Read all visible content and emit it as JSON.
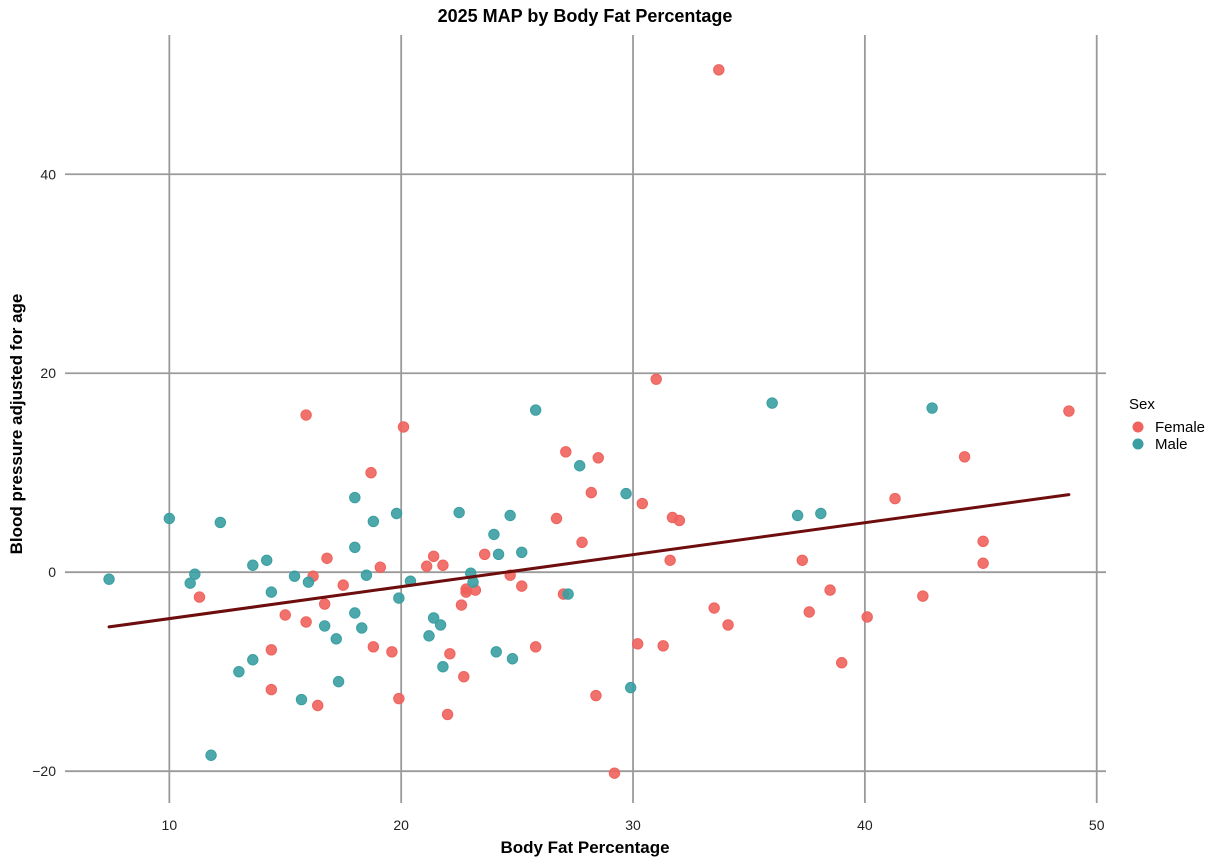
{
  "chart_data": {
    "type": "scatter",
    "title": "2025 MAP by Body Fat Percentage",
    "xlabel": "Body Fat Percentage",
    "ylabel": "Blood pressure adjusted for age",
    "xlim": [
      5.5,
      50.4
    ],
    "ylim": [
      -23.2,
      54.0
    ],
    "x_ticks": [
      10,
      20,
      30,
      40,
      50
    ],
    "y_ticks": [
      -20,
      0,
      20,
      40
    ],
    "y_tick_labels": [
      "−20",
      "0",
      "20",
      "40"
    ],
    "grid": true,
    "legend": {
      "title": "Sex",
      "position": "right",
      "entries": [
        {
          "label": "Female",
          "color": "#F0625C"
        },
        {
          "label": "Male",
          "color": "#3A9FA2"
        }
      ]
    },
    "series": [
      {
        "name": "Female",
        "color": "#F0625C",
        "points": [
          [
            33.7,
            50.5
          ],
          [
            31.0,
            19.4
          ],
          [
            15.9,
            15.8
          ],
          [
            20.1,
            14.6
          ],
          [
            48.8,
            16.2
          ],
          [
            27.1,
            12.1
          ],
          [
            28.5,
            11.5
          ],
          [
            44.3,
            11.6
          ],
          [
            18.7,
            10.0
          ],
          [
            28.2,
            8.0
          ],
          [
            41.3,
            7.4
          ],
          [
            30.4,
            6.9
          ],
          [
            31.7,
            5.5
          ],
          [
            32.0,
            5.2
          ],
          [
            26.7,
            5.4
          ],
          [
            27.8,
            3.0
          ],
          [
            45.1,
            3.1
          ],
          [
            37.3,
            1.2
          ],
          [
            31.6,
            1.2
          ],
          [
            45.1,
            0.9
          ],
          [
            16.8,
            1.4
          ],
          [
            21.4,
            1.6
          ],
          [
            23.6,
            1.8
          ],
          [
            19.1,
            0.5
          ],
          [
            21.1,
            0.6
          ],
          [
            21.8,
            0.7
          ],
          [
            16.2,
            -0.4
          ],
          [
            24.7,
            -0.3
          ],
          [
            17.5,
            -1.3
          ],
          [
            25.2,
            -1.4
          ],
          [
            22.8,
            -1.7
          ],
          [
            22.8,
            -2.0
          ],
          [
            23.2,
            -1.8
          ],
          [
            11.3,
            -2.5
          ],
          [
            27.0,
            -2.2
          ],
          [
            38.5,
            -1.8
          ],
          [
            42.5,
            -2.4
          ],
          [
            16.7,
            -3.2
          ],
          [
            22.6,
            -3.3
          ],
          [
            33.5,
            -3.6
          ],
          [
            37.6,
            -4.0
          ],
          [
            15.0,
            -4.3
          ],
          [
            40.1,
            -4.5
          ],
          [
            15.9,
            -5.0
          ],
          [
            34.1,
            -5.3
          ],
          [
            14.4,
            -7.8
          ],
          [
            18.8,
            -7.5
          ],
          [
            19.6,
            -8.0
          ],
          [
            22.1,
            -8.2
          ],
          [
            25.8,
            -7.5
          ],
          [
            30.2,
            -7.2
          ],
          [
            31.3,
            -7.4
          ],
          [
            39.0,
            -9.1
          ],
          [
            22.7,
            -10.5
          ],
          [
            14.4,
            -11.8
          ],
          [
            28.4,
            -12.4
          ],
          [
            19.9,
            -12.7
          ],
          [
            16.4,
            -13.4
          ],
          [
            22.0,
            -14.3
          ],
          [
            29.2,
            -20.2
          ]
        ]
      },
      {
        "name": "Male",
        "color": "#3A9FA2",
        "points": [
          [
            7.4,
            -0.7
          ],
          [
            10.0,
            5.4
          ],
          [
            11.1,
            -0.2
          ],
          [
            10.9,
            -1.1
          ],
          [
            12.2,
            5.0
          ],
          [
            13.6,
            0.7
          ],
          [
            14.2,
            1.2
          ],
          [
            14.4,
            -2.0
          ],
          [
            15.4,
            -0.4
          ],
          [
            16.0,
            -1.0
          ],
          [
            13.6,
            -8.8
          ],
          [
            13.0,
            -10.0
          ],
          [
            11.8,
            -18.4
          ],
          [
            15.7,
            -12.8
          ],
          [
            16.7,
            -5.4
          ],
          [
            17.2,
            -6.7
          ],
          [
            17.3,
            -11.0
          ],
          [
            18.0,
            7.5
          ],
          [
            18.0,
            2.5
          ],
          [
            18.0,
            -4.1
          ],
          [
            18.3,
            -5.6
          ],
          [
            18.5,
            -0.3
          ],
          [
            18.8,
            5.1
          ],
          [
            19.8,
            5.9
          ],
          [
            19.9,
            -2.6
          ],
          [
            20.4,
            -0.9
          ],
          [
            21.2,
            -6.4
          ],
          [
            21.4,
            -4.6
          ],
          [
            21.7,
            -5.3
          ],
          [
            21.8,
            -9.5
          ],
          [
            22.5,
            6.0
          ],
          [
            23.0,
            -0.1
          ],
          [
            23.1,
            -1.0
          ],
          [
            24.0,
            3.8
          ],
          [
            24.2,
            1.8
          ],
          [
            24.1,
            -8.0
          ],
          [
            24.7,
            5.7
          ],
          [
            24.8,
            -8.7
          ],
          [
            25.2,
            2.0
          ],
          [
            25.8,
            16.3
          ],
          [
            27.2,
            -2.2
          ],
          [
            27.7,
            10.7
          ],
          [
            29.7,
            7.9
          ],
          [
            29.9,
            -11.6
          ],
          [
            36.0,
            17.0
          ],
          [
            37.1,
            5.7
          ],
          [
            38.1,
            5.9
          ],
          [
            42.9,
            16.5
          ]
        ]
      }
    ],
    "trend_line": {
      "color": "#6E0D0D",
      "x": [
        7.4,
        48.8
      ],
      "y": [
        -5.5,
        7.8
      ]
    }
  }
}
